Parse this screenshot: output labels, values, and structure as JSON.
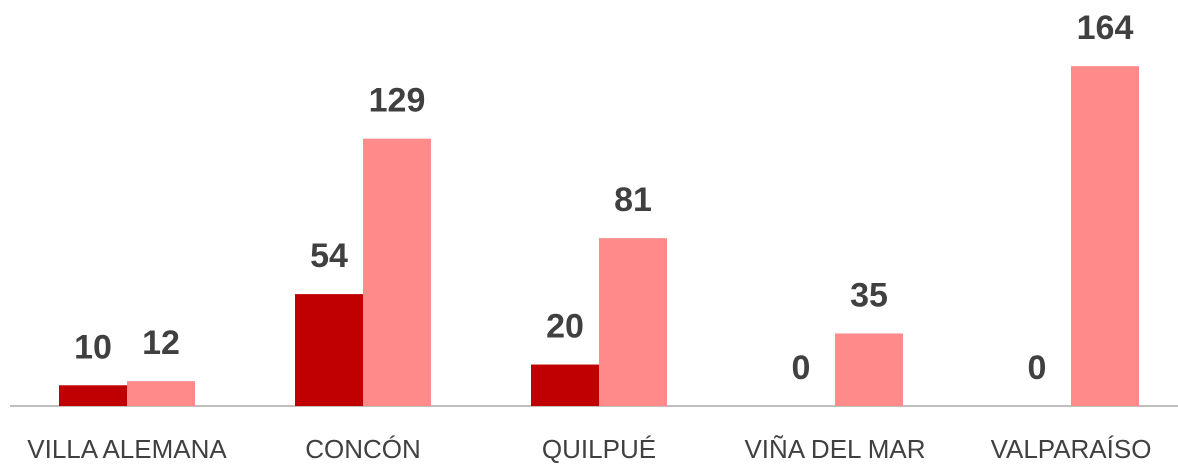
{
  "chart_data": {
    "type": "bar",
    "categories": [
      "VILLA ALEMANA",
      "CONCÓN",
      "QUILPUÉ",
      "VIÑA DEL MAR",
      "VALPARAÍSO"
    ],
    "series": [
      {
        "color": "#c00000",
        "values": [
          10,
          54,
          20,
          0,
          0
        ]
      },
      {
        "color": "#ff8a8a",
        "values": [
          12,
          129,
          81,
          35,
          164
        ]
      }
    ],
    "ylim": [
      0,
      180
    ]
  }
}
